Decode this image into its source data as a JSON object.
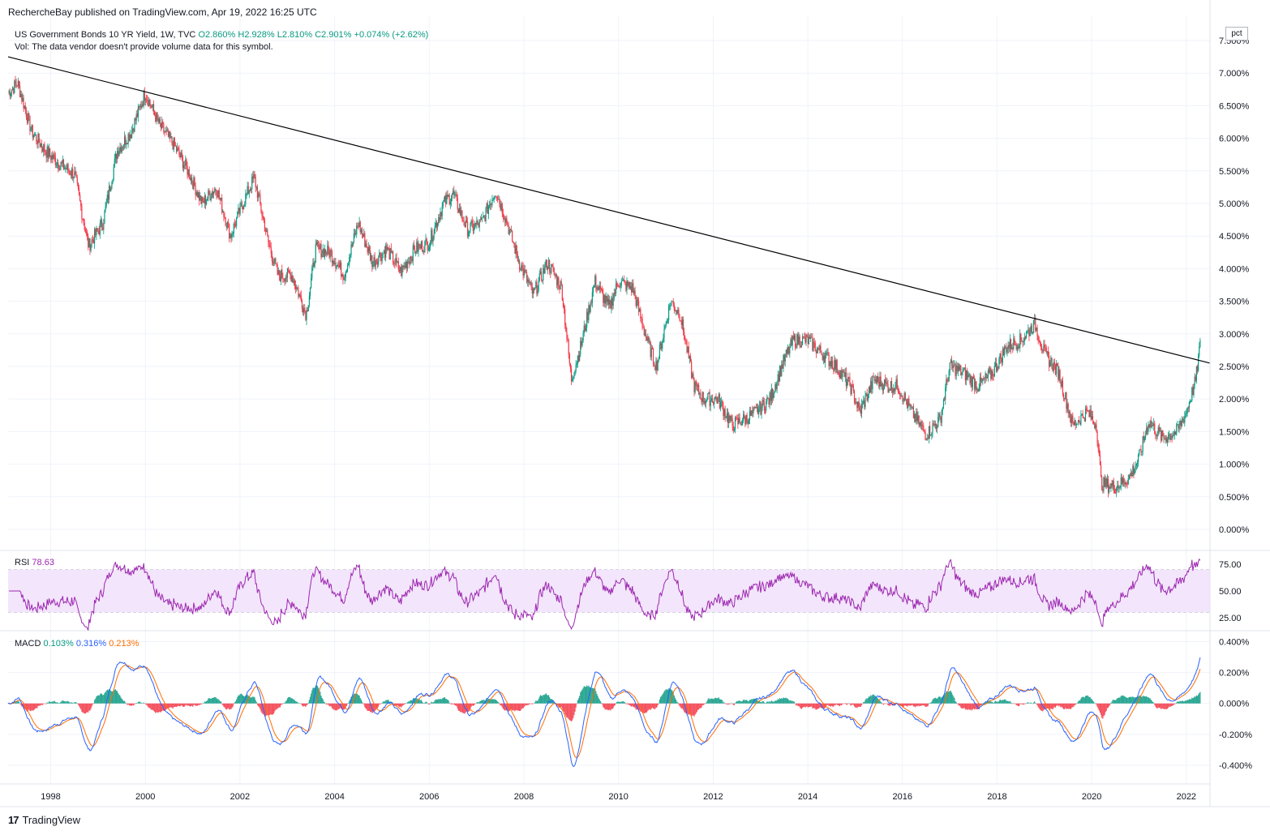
{
  "header": {
    "published": "RechercheBay published on TradingView.com, Apr 19, 2022 16:25 UTC"
  },
  "legend": {
    "symbol": "US Government Bonds 10 YR Yield, 1W, TVC",
    "open": "O2.860%",
    "high": "H2.928%",
    "low": "L2.810%",
    "close": "C2.901%",
    "change": "+0.074% (+2.62%)",
    "vol_note": "Vol: The data vendor doesn't provide volume data for this symbol."
  },
  "scale_button": "pct",
  "rsi": {
    "label": "RSI",
    "value": "78.63"
  },
  "macd": {
    "label": "MACD",
    "histogram": "0.103%",
    "macd": "0.316%",
    "signal": "0.213%"
  },
  "footer": {
    "brand": "TradingView",
    "logo": "17"
  },
  "colors": {
    "up": "#089981",
    "down": "#f23645",
    "rsi_line": "#9c27b0",
    "rsi_band": "#f3e5fb",
    "macd_line": "#2962ff",
    "signal_line": "#ff6d00",
    "trendline": "#000000"
  },
  "chart_data": [
    {
      "type": "candlestick",
      "title": "US Government Bonds 10 YR Yield, 1W, TVC",
      "ylabel": "pct",
      "y_ticks": [
        "7.500%",
        "7.000%",
        "6.500%",
        "6.000%",
        "5.500%",
        "5.000%",
        "4.500%",
        "4.000%",
        "3.500%",
        "3.000%",
        "2.500%",
        "2.000%",
        "1.500%",
        "1.000%",
        "0.500%",
        "0.000%"
      ],
      "x_ticks": [
        "1998",
        "2000",
        "2002",
        "2004",
        "2006",
        "2008",
        "2010",
        "2012",
        "2014",
        "2016",
        "2018",
        "2020",
        "2022"
      ],
      "ylim": [
        0.0,
        7.5
      ],
      "xlim": [
        1997.1,
        2022.5
      ],
      "price_points": [
        [
          1997.1,
          6.7
        ],
        [
          1997.3,
          6.85
        ],
        [
          1997.6,
          6.1
        ],
        [
          1997.9,
          5.8
        ],
        [
          1998.2,
          5.6
        ],
        [
          1998.5,
          5.45
        ],
        [
          1998.8,
          4.35
        ],
        [
          1999.1,
          4.7
        ],
        [
          1999.4,
          5.8
        ],
        [
          1999.7,
          6.1
        ],
        [
          2000.0,
          6.7
        ],
        [
          2000.3,
          6.2
        ],
        [
          2000.6,
          5.9
        ],
        [
          2000.9,
          5.5
        ],
        [
          2001.2,
          5.0
        ],
        [
          2001.5,
          5.25
        ],
        [
          2001.8,
          4.5
        ],
        [
          2002.0,
          4.9
        ],
        [
          2002.3,
          5.4
        ],
        [
          2002.6,
          4.4
        ],
        [
          2002.8,
          3.9
        ],
        [
          2003.1,
          3.9
        ],
        [
          2003.4,
          3.3
        ],
        [
          2003.6,
          4.3
        ],
        [
          2003.9,
          4.25
        ],
        [
          2004.2,
          3.9
        ],
        [
          2004.5,
          4.7
        ],
        [
          2004.8,
          4.1
        ],
        [
          2005.1,
          4.3
        ],
        [
          2005.4,
          3.95
        ],
        [
          2005.7,
          4.3
        ],
        [
          2006.0,
          4.4
        ],
        [
          2006.3,
          5.0
        ],
        [
          2006.5,
          5.15
        ],
        [
          2006.8,
          4.6
        ],
        [
          2007.1,
          4.7
        ],
        [
          2007.4,
          5.2
        ],
        [
          2007.6,
          4.8
        ],
        [
          2007.9,
          4.1
        ],
        [
          2008.2,
          3.6
        ],
        [
          2008.5,
          4.1
        ],
        [
          2008.8,
          3.7
        ],
        [
          2009.0,
          2.3
        ],
        [
          2009.2,
          2.8
        ],
        [
          2009.5,
          3.8
        ],
        [
          2009.8,
          3.4
        ],
        [
          2010.0,
          3.8
        ],
        [
          2010.3,
          3.7
        ],
        [
          2010.6,
          2.9
        ],
        [
          2010.8,
          2.5
        ],
        [
          2011.1,
          3.5
        ],
        [
          2011.3,
          3.3
        ],
        [
          2011.6,
          2.2
        ],
        [
          2011.8,
          2.0
        ],
        [
          2012.1,
          2.0
        ],
        [
          2012.4,
          1.6
        ],
        [
          2012.7,
          1.7
        ],
        [
          2012.9,
          1.8
        ],
        [
          2013.2,
          2.0
        ],
        [
          2013.5,
          2.6
        ],
        [
          2013.7,
          2.9
        ],
        [
          2014.0,
          2.9
        ],
        [
          2014.3,
          2.7
        ],
        [
          2014.6,
          2.5
        ],
        [
          2014.9,
          2.2
        ],
        [
          2015.1,
          1.8
        ],
        [
          2015.4,
          2.3
        ],
        [
          2015.7,
          2.2
        ],
        [
          2015.9,
          2.2
        ],
        [
          2016.2,
          1.8
        ],
        [
          2016.5,
          1.45
        ],
        [
          2016.8,
          1.7
        ],
        [
          2017.0,
          2.5
        ],
        [
          2017.3,
          2.4
        ],
        [
          2017.6,
          2.2
        ],
        [
          2017.9,
          2.4
        ],
        [
          2018.2,
          2.8
        ],
        [
          2018.5,
          2.9
        ],
        [
          2018.8,
          3.15
        ],
        [
          2019.0,
          2.7
        ],
        [
          2019.3,
          2.4
        ],
        [
          2019.6,
          1.6
        ],
        [
          2019.9,
          1.8
        ],
        [
          2020.1,
          1.6
        ],
        [
          2020.2,
          0.7
        ],
        [
          2020.5,
          0.65
        ],
        [
          2020.8,
          0.8
        ],
        [
          2021.0,
          1.1
        ],
        [
          2021.2,
          1.65
        ],
        [
          2021.5,
          1.4
        ],
        [
          2021.8,
          1.5
        ],
        [
          2022.0,
          1.8
        ],
        [
          2022.2,
          2.3
        ],
        [
          2022.3,
          2.9
        ]
      ],
      "trendline": {
        "from": [
          1997.1,
          7.25
        ],
        "to": [
          2022.5,
          2.55
        ]
      }
    },
    {
      "type": "line",
      "title": "RSI",
      "y_ticks": [
        "75.00",
        "50.00",
        "25.00"
      ],
      "ylim": [
        15,
        85
      ],
      "band": [
        30,
        70
      ],
      "series": [
        {
          "name": "RSI",
          "last_value": 78.63
        }
      ]
    },
    {
      "type": "line",
      "title": "MACD",
      "y_ticks": [
        "0.400%",
        "0.200%",
        "0.000%",
        "-0.200%",
        "-0.400%"
      ],
      "ylim": [
        -0.5,
        0.45
      ],
      "series": [
        {
          "name": "MACD",
          "last_value": 0.316
        },
        {
          "name": "Signal",
          "last_value": 0.213
        },
        {
          "name": "Histogram",
          "last_value": 0.103
        }
      ]
    }
  ]
}
